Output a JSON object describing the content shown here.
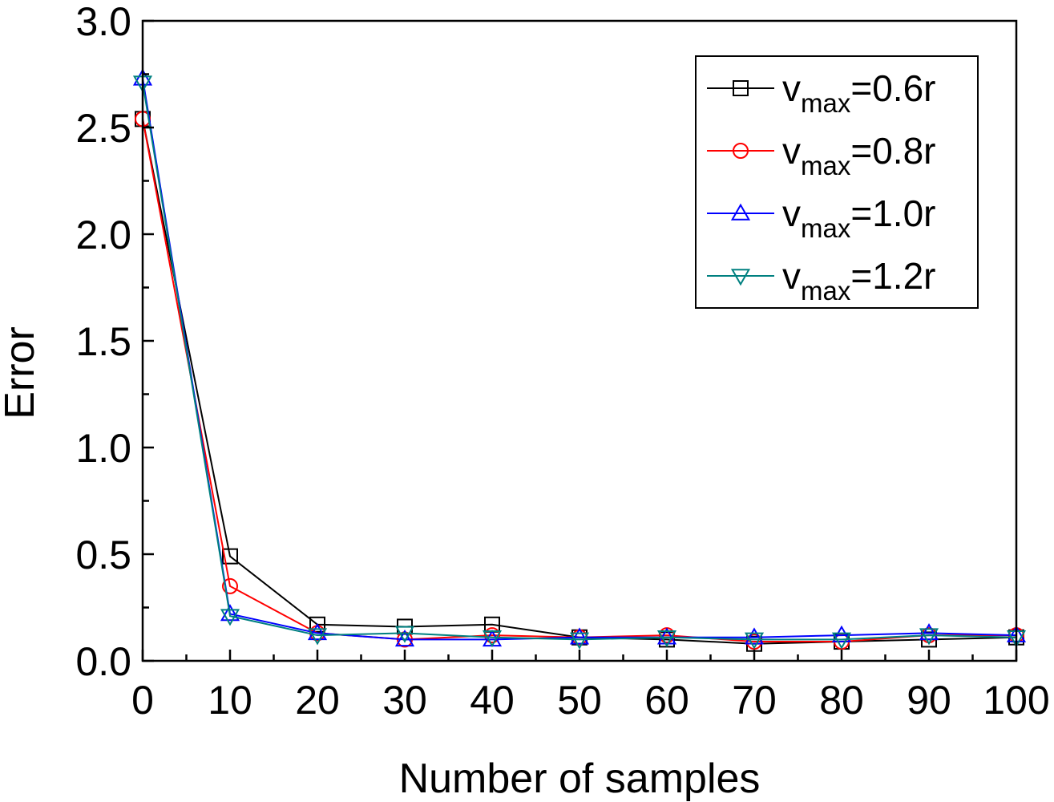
{
  "chart_data": {
    "type": "line",
    "title": "",
    "xlabel": "Number of samples",
    "ylabel": "Error",
    "xlim": [
      0,
      100
    ],
    "ylim": [
      0.0,
      3.0
    ],
    "x_ticks": [
      0,
      10,
      20,
      30,
      40,
      50,
      60,
      70,
      80,
      90,
      100
    ],
    "x_tick_labels": [
      "0",
      "10",
      "20",
      "30",
      "40",
      "50",
      "60",
      "70",
      "80",
      "90",
      "100"
    ],
    "y_ticks": [
      0.0,
      0.5,
      1.0,
      1.5,
      2.0,
      2.5,
      3.0
    ],
    "y_tick_labels": [
      "0.0",
      "0.5",
      "1.0",
      "1.5",
      "2.0",
      "2.5",
      "3.0"
    ],
    "grid": false,
    "legend_position": "top-right",
    "x": [
      0,
      10,
      20,
      30,
      40,
      50,
      60,
      70,
      80,
      90,
      100
    ],
    "series": [
      {
        "name": "vmax=0.6r",
        "label_main": "v",
        "label_sub": "max",
        "label_rest": "=0.6r",
        "color": "#000000",
        "marker": "square",
        "values": [
          2.54,
          0.49,
          0.17,
          0.16,
          0.17,
          0.11,
          0.1,
          0.08,
          0.09,
          0.1,
          0.11
        ]
      },
      {
        "name": "vmax=0.8r",
        "label_main": "v",
        "label_sub": "max",
        "label_rest": "=0.8r",
        "color": "#ff0000",
        "marker": "circle",
        "values": [
          2.54,
          0.35,
          0.13,
          0.1,
          0.12,
          0.11,
          0.12,
          0.09,
          0.09,
          0.12,
          0.12
        ]
      },
      {
        "name": "vmax=1.0r",
        "label_main": "v",
        "label_sub": "max",
        "label_rest": "=1.0r",
        "color": "#0000ff",
        "marker": "triangle-up",
        "values": [
          2.73,
          0.22,
          0.13,
          0.1,
          0.1,
          0.11,
          0.11,
          0.11,
          0.12,
          0.13,
          0.12
        ]
      },
      {
        "name": "vmax=1.2r",
        "label_main": "v",
        "label_sub": "max",
        "label_rest": "=1.2r",
        "color": "#008080",
        "marker": "triangle-down",
        "values": [
          2.71,
          0.21,
          0.12,
          0.13,
          0.11,
          0.1,
          0.11,
          0.1,
          0.1,
          0.12,
          0.11
        ]
      }
    ]
  }
}
